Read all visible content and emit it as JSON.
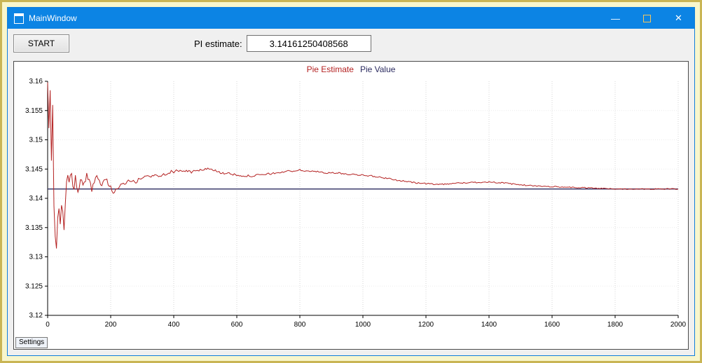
{
  "window": {
    "title": "MainWindow",
    "minimize_glyph": "—",
    "close_glyph": "✕"
  },
  "controls": {
    "start_label": "START",
    "pi_label": "PI estimate:",
    "pi_value": "3.14161250408568"
  },
  "tabs": [
    {
      "label": "Settings"
    }
  ],
  "colors": {
    "titlebar": "#0c84e4",
    "frame_background": "#f8f6cc",
    "estimate_line": "#b42222",
    "value_line": "#2b2b60"
  },
  "chart_data": {
    "type": "line",
    "title": "",
    "xlabel": "",
    "ylabel": "",
    "xlim": [
      0,
      2000
    ],
    "ylim": [
      3.12,
      3.16
    ],
    "x_ticks": [
      0,
      200,
      400,
      600,
      800,
      1000,
      1200,
      1400,
      1600,
      1800,
      2000
    ],
    "y_ticks": [
      3.12,
      3.125,
      3.13,
      3.135,
      3.14,
      3.145,
      3.15,
      3.155,
      3.16
    ],
    "grid": true,
    "legend_position": "top-center",
    "legend": [
      {
        "name": "Pie Estimate",
        "color": "#b42222"
      },
      {
        "name": "Pie Value",
        "color": "#2b2b60"
      }
    ],
    "series": [
      {
        "name": "Pie Estimate",
        "color": "#b42222",
        "width": 1,
        "noise": true,
        "points": [
          [
            0,
            3.16
          ],
          [
            4,
            3.152
          ],
          [
            8,
            3.1585
          ],
          [
            12,
            3.145
          ],
          [
            16,
            3.156
          ],
          [
            20,
            3.138
          ],
          [
            24,
            3.134
          ],
          [
            28,
            3.132
          ],
          [
            34,
            3.138
          ],
          [
            40,
            3.1355
          ],
          [
            46,
            3.139
          ],
          [
            52,
            3.134
          ],
          [
            58,
            3.141
          ],
          [
            64,
            3.1445
          ],
          [
            70,
            3.143
          ],
          [
            76,
            3.1445
          ],
          [
            82,
            3.141
          ],
          [
            88,
            3.144
          ],
          [
            95,
            3.14
          ],
          [
            105,
            3.144
          ],
          [
            115,
            3.142
          ],
          [
            125,
            3.144
          ],
          [
            140,
            3.1415
          ],
          [
            155,
            3.1435
          ],
          [
            170,
            3.1425
          ],
          [
            185,
            3.1432
          ],
          [
            200,
            3.142
          ],
          [
            210,
            3.1405
          ],
          [
            220,
            3.1418
          ],
          [
            240,
            3.1425
          ],
          [
            260,
            3.143
          ],
          [
            280,
            3.1428
          ],
          [
            300,
            3.1436
          ],
          [
            330,
            3.1438
          ],
          [
            360,
            3.144
          ],
          [
            390,
            3.1445
          ],
          [
            420,
            3.1448
          ],
          [
            450,
            3.1445
          ],
          [
            480,
            3.1447
          ],
          [
            510,
            3.1452
          ],
          [
            540,
            3.1445
          ],
          [
            570,
            3.1442
          ],
          [
            600,
            3.144
          ],
          [
            640,
            3.1438
          ],
          [
            680,
            3.144
          ],
          [
            720,
            3.1443
          ],
          [
            760,
            3.1446
          ],
          [
            800,
            3.1448
          ],
          [
            840,
            3.1446
          ],
          [
            880,
            3.1444
          ],
          [
            920,
            3.1443
          ],
          [
            960,
            3.1441
          ],
          [
            1000,
            3.144
          ],
          [
            1040,
            3.1437
          ],
          [
            1080,
            3.1434
          ],
          [
            1120,
            3.143
          ],
          [
            1160,
            3.1427
          ],
          [
            1200,
            3.1425
          ],
          [
            1250,
            3.1424
          ],
          [
            1300,
            3.1426
          ],
          [
            1350,
            3.1427
          ],
          [
            1400,
            3.1428
          ],
          [
            1450,
            3.1426
          ],
          [
            1500,
            3.1423
          ],
          [
            1550,
            3.1421
          ],
          [
            1600,
            3.142
          ],
          [
            1650,
            3.1419
          ],
          [
            1700,
            3.1418
          ],
          [
            1750,
            3.1417
          ],
          [
            1800,
            3.1416
          ],
          [
            1850,
            3.1416
          ],
          [
            1900,
            3.1416
          ],
          [
            1950,
            3.1416
          ],
          [
            2000,
            3.1416
          ]
        ]
      },
      {
        "name": "Pie Value",
        "color": "#2b2b60",
        "width": 1.3,
        "noise": false,
        "points": [
          [
            0,
            3.14159265
          ],
          [
            2000,
            3.14159265
          ]
        ]
      }
    ]
  }
}
